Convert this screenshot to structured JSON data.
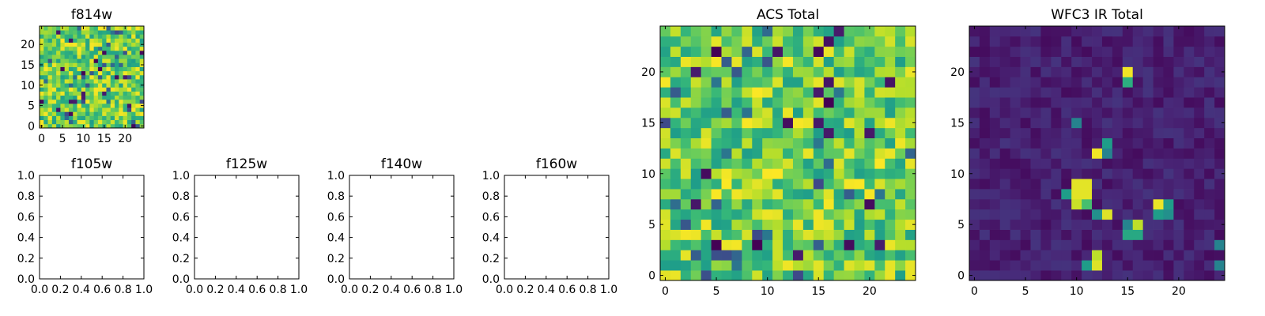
{
  "chart_data": [
    {
      "type": "heatmap",
      "title": "f814w",
      "grid_size": 25,
      "xticks": [
        "0",
        "5",
        "10",
        "15",
        "20"
      ],
      "yticks": [
        "0",
        "5",
        "10",
        "15",
        "20"
      ],
      "value_range": [
        0,
        1
      ],
      "colormap": "viridis",
      "pattern": "noise_high"
    },
    {
      "type": "heatmap",
      "title": "f105w",
      "empty": true,
      "xticks": [
        "0.0",
        "0.2",
        "0.4",
        "0.6",
        "0.8",
        "1.0"
      ],
      "yticks": [
        "0.0",
        "0.2",
        "0.4",
        "0.6",
        "0.8",
        "1.0"
      ],
      "xlim": [
        0,
        1
      ],
      "ylim": [
        0,
        1
      ]
    },
    {
      "type": "heatmap",
      "title": "f125w",
      "empty": true,
      "xticks": [
        "0.0",
        "0.2",
        "0.4",
        "0.6",
        "0.8",
        "1.0"
      ],
      "yticks": [
        "0.0",
        "0.2",
        "0.4",
        "0.6",
        "0.8",
        "1.0"
      ],
      "xlim": [
        0,
        1
      ],
      "ylim": [
        0,
        1
      ]
    },
    {
      "type": "heatmap",
      "title": "f140w",
      "empty": true,
      "xticks": [
        "0.0",
        "0.2",
        "0.4",
        "0.6",
        "0.8",
        "1.0"
      ],
      "yticks": [
        "0.0",
        "0.2",
        "0.4",
        "0.6",
        "0.8",
        "1.0"
      ],
      "xlim": [
        0,
        1
      ],
      "ylim": [
        0,
        1
      ]
    },
    {
      "type": "heatmap",
      "title": "f160w",
      "empty": true,
      "xticks": [
        "0.0",
        "0.2",
        "0.4",
        "0.6",
        "0.8",
        "1.0"
      ],
      "yticks": [
        "0.0",
        "0.2",
        "0.4",
        "0.6",
        "0.8",
        "1.0"
      ],
      "xlim": [
        0,
        1
      ],
      "ylim": [
        0,
        1
      ]
    },
    {
      "type": "heatmap",
      "title": "ACS Total",
      "grid_size": 25,
      "xticks": [
        "0",
        "5",
        "10",
        "15",
        "20"
      ],
      "yticks": [
        "0",
        "5",
        "10",
        "15",
        "20"
      ],
      "value_range": [
        0,
        1
      ],
      "colormap": "viridis",
      "pattern": "noise_high"
    },
    {
      "type": "heatmap",
      "title": "WFC3 IR Total",
      "grid_size": 25,
      "xticks": [
        "0",
        "5",
        "10",
        "15",
        "20"
      ],
      "yticks": [
        "0",
        "5",
        "10",
        "15",
        "20"
      ],
      "value_range": [
        0,
        1
      ],
      "colormap": "viridis",
      "pattern": "sparse_bright",
      "bright_cells": [
        {
          "x": 15,
          "y": 20,
          "v": 0.98
        },
        {
          "x": 15,
          "y": 19,
          "v": 0.62
        },
        {
          "x": 10,
          "y": 15,
          "v": 0.45
        },
        {
          "x": 13,
          "y": 13,
          "v": 0.55
        },
        {
          "x": 12,
          "y": 12,
          "v": 0.98
        },
        {
          "x": 13,
          "y": 12,
          "v": 0.45
        },
        {
          "x": 10,
          "y": 9,
          "v": 0.96
        },
        {
          "x": 11,
          "y": 9,
          "v": 0.96
        },
        {
          "x": 9,
          "y": 8,
          "v": 0.55
        },
        {
          "x": 10,
          "y": 8,
          "v": 0.96
        },
        {
          "x": 11,
          "y": 8,
          "v": 0.96
        },
        {
          "x": 10,
          "y": 7,
          "v": 0.92
        },
        {
          "x": 11,
          "y": 7,
          "v": 0.7
        },
        {
          "x": 18,
          "y": 7,
          "v": 0.97
        },
        {
          "x": 19,
          "y": 7,
          "v": 0.55
        },
        {
          "x": 18,
          "y": 6,
          "v": 0.55
        },
        {
          "x": 19,
          "y": 6,
          "v": 0.5
        },
        {
          "x": 12,
          "y": 6,
          "v": 0.5
        },
        {
          "x": 13,
          "y": 6,
          "v": 0.95
        },
        {
          "x": 16,
          "y": 5,
          "v": 0.9
        },
        {
          "x": 15,
          "y": 5,
          "v": 0.45
        },
        {
          "x": 15,
          "y": 4,
          "v": 0.6
        },
        {
          "x": 16,
          "y": 4,
          "v": 0.6
        },
        {
          "x": 24,
          "y": 3,
          "v": 0.45
        },
        {
          "x": 12,
          "y": 2,
          "v": 0.9
        },
        {
          "x": 11,
          "y": 1,
          "v": 0.55
        },
        {
          "x": 12,
          "y": 1,
          "v": 0.95
        },
        {
          "x": 24,
          "y": 1,
          "v": 0.45
        }
      ]
    }
  ]
}
